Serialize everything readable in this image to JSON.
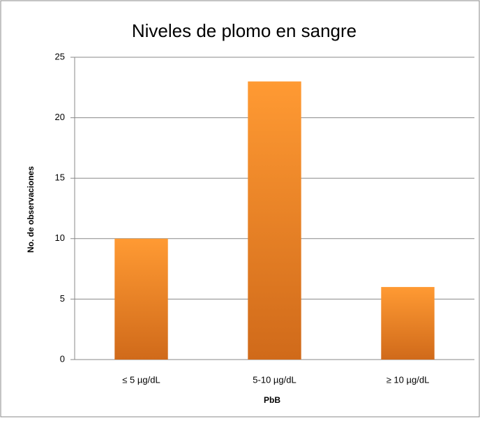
{
  "chart_data": {
    "type": "bar",
    "title": "Niveles de plomo en sangre",
    "x_label": "PbB",
    "y_label": "No. de observaciones",
    "categories": [
      "≤ 5 µg/dL",
      "5-10 µg/dL",
      "≥ 10 µg/dL"
    ],
    "values": [
      10,
      23,
      6
    ],
    "color": "#f28a2a",
    "ylim": [
      0,
      25
    ],
    "yticks": [
      0,
      5,
      10,
      15,
      20,
      25
    ],
    "grid": true
  }
}
